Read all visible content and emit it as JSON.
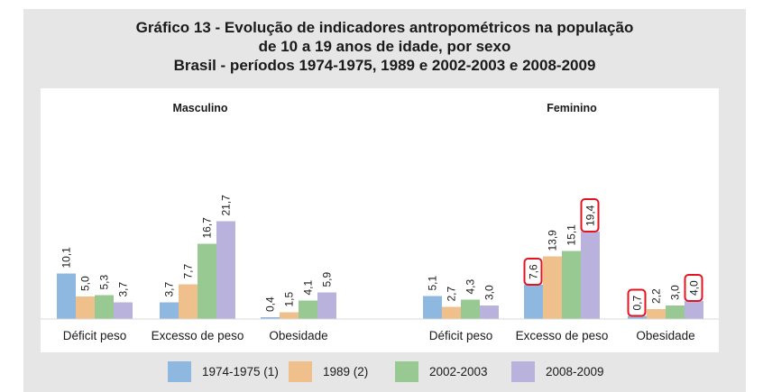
{
  "chart_data": {
    "type": "bar",
    "title_lines": [
      "Gráfico 13 - Evolução de indicadores antropométricos na população",
      "de 10 a 19 anos de idade, por sexo",
      "Brasil - períodos 1974-1975, 1989 e 2002-2003 e 2008-2009"
    ],
    "panels": [
      {
        "name": "Masculino",
        "categories": [
          "Déficit peso",
          "Excesso de peso",
          "Obesidade"
        ],
        "series": [
          {
            "name": "1974-1975 (1)",
            "values": [
              10.1,
              3.7,
              0.4
            ],
            "labels": [
              "10,1",
              "3,7",
              "0,4"
            ]
          },
          {
            "name": "1989 (2)",
            "values": [
              5.0,
              7.7,
              1.5
            ],
            "labels": [
              "5,0",
              "7,7",
              "1,5"
            ]
          },
          {
            "name": "2002-2003",
            "values": [
              5.3,
              16.7,
              4.1
            ],
            "labels": [
              "5,3",
              "16,7",
              "4,1"
            ]
          },
          {
            "name": "2008-2009",
            "values": [
              3.7,
              21.7,
              5.9
            ],
            "labels": [
              "3,7",
              "21,7",
              "5,9"
            ]
          }
        ]
      },
      {
        "name": "Feminino",
        "categories": [
          "Déficit peso",
          "Excesso de peso",
          "Obesidade"
        ],
        "series": [
          {
            "name": "1974-1975 (1)",
            "values": [
              5.1,
              7.6,
              0.7
            ],
            "labels": [
              "5,1",
              "7,6",
              "0,7"
            ]
          },
          {
            "name": "1989 (2)",
            "values": [
              2.7,
              13.9,
              2.2
            ],
            "labels": [
              "2,7",
              "13,9",
              "2,2"
            ]
          },
          {
            "name": "2002-2003",
            "values": [
              4.3,
              15.1,
              3.0
            ],
            "labels": [
              "4,3",
              "15,1",
              "3,0"
            ]
          },
          {
            "name": "2008-2009",
            "values": [
              3.0,
              19.4,
              4.0
            ],
            "labels": [
              "3,0",
              "19,4",
              "4,0"
            ]
          }
        ]
      }
    ],
    "legend": [
      "1974-1975 (1)",
      "1989 (2)",
      "2002-2003",
      "2008-2009"
    ],
    "colors": [
      "#8fb8e0",
      "#f0c08c",
      "#99c993",
      "#b9b2dc"
    ],
    "annotation_color": "#e3141d",
    "annotated_labels": [
      "7,6",
      "19,4",
      "0,7",
      "4,0"
    ]
  }
}
